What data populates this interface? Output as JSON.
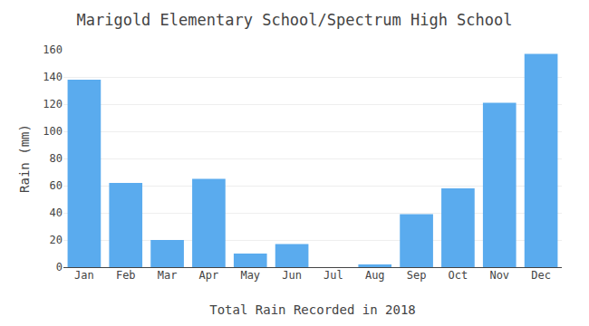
{
  "chart_data": {
    "type": "bar",
    "title": "Marigold Elementary School/Spectrum High School",
    "xlabel": "Total Rain Recorded in 2018",
    "ylabel": "Rain (mm)",
    "categories": [
      "Jan",
      "Feb",
      "Mar",
      "Apr",
      "May",
      "Jun",
      "Jul",
      "Aug",
      "Sep",
      "Oct",
      "Nov",
      "Dec"
    ],
    "values": [
      138,
      62,
      20,
      65,
      10,
      17,
      0,
      2,
      39,
      58,
      121,
      157
    ],
    "color": "#5aabee",
    "ylim": [
      0,
      160
    ],
    "yticks": [
      0,
      20,
      40,
      60,
      80,
      100,
      120,
      140,
      160
    ],
    "grid": true
  }
}
